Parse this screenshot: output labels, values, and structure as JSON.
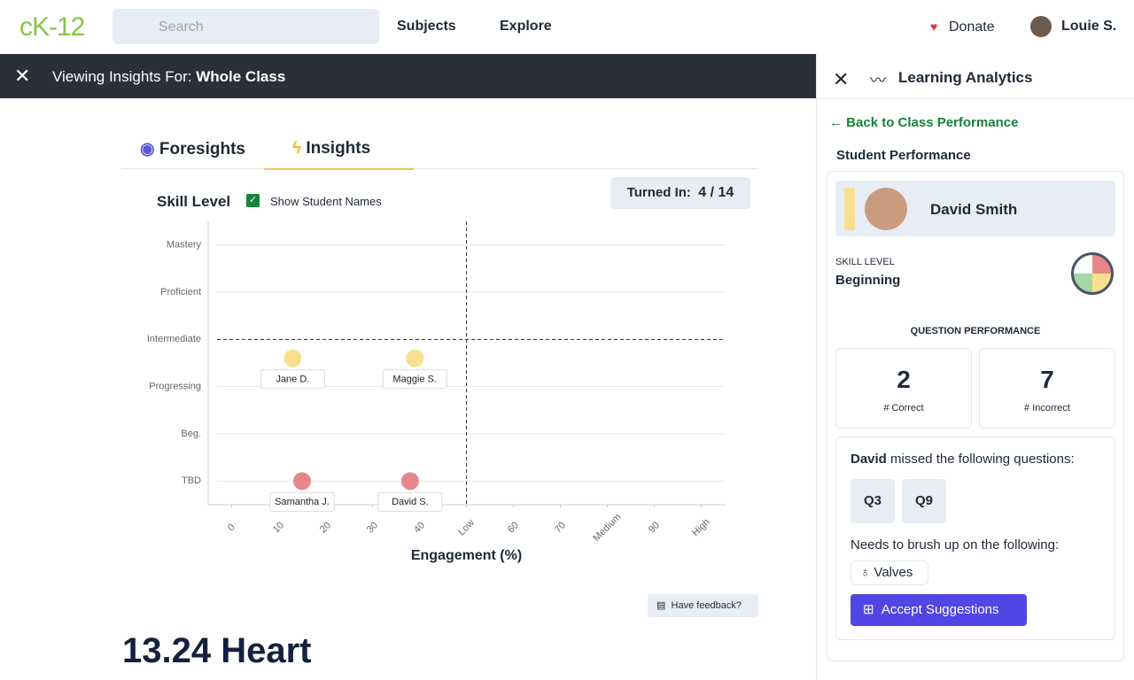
{
  "header": {
    "logo": "cK-12",
    "search": "Search",
    "nav": [
      "Subjects",
      "Explore"
    ],
    "donate": "Donate",
    "user": "Louie S."
  },
  "banner": {
    "prefix": "Viewing Insights For:",
    "target": "Whole Class"
  },
  "tabs": [
    "Foresights",
    "Insights"
  ],
  "chart_header": {
    "title": "Skill Level",
    "checkbox": "Show Student Names",
    "turned_in_label": "Turned In:",
    "turned_in_value": "4 / 14"
  },
  "chart_data": {
    "type": "scatter",
    "x_label": "Engagement (%)",
    "xlim": [
      -5,
      105
    ],
    "xticks": [
      0,
      10,
      20,
      30,
      40,
      {
        "value": 50,
        "label": "Low"
      },
      60,
      70,
      {
        "value": 80,
        "label": "Medium"
      },
      90,
      {
        "value": 100,
        "label": "High"
      }
    ],
    "ylim": [
      -0.5,
      5.5
    ],
    "yticks": [
      {
        "value": 0,
        "label": "TBD"
      },
      {
        "value": 1,
        "label": "Beg."
      },
      {
        "value": 2,
        "label": "Progressing"
      },
      {
        "value": 3,
        "label": "Intermediate"
      },
      {
        "value": 4,
        "label": "Proficient"
      },
      {
        "value": 5,
        "label": "Mastery"
      }
    ],
    "grid": true,
    "threshold": {
      "x": 50,
      "y": 3
    },
    "points": [
      {
        "label": "Jane D.",
        "x": 13,
        "y": 2.6,
        "color": "#f9e08f"
      },
      {
        "label": "Maggie S.",
        "x": 39,
        "y": 2.6,
        "color": "#f9e08f"
      },
      {
        "label": "Samantha J.",
        "x": 15,
        "y": 0,
        "color": "#e8868a"
      },
      {
        "label": "David S.",
        "x": 38,
        "y": 0,
        "color": "#e8868a"
      }
    ]
  },
  "feedback": "Have feedback?",
  "section_title": "13.24 Heart",
  "panel": {
    "title": "Learning Analytics",
    "back": "Back to Class Performance",
    "section": "Student Performance",
    "student": "David Smith",
    "skill_label": "SKILL LEVEL",
    "skill": "Beginning",
    "qp_title": "QUESTION PERFORMANCE",
    "correct": {
      "value": 2,
      "label": "# Correct"
    },
    "incorrect": {
      "value": 7,
      "label": "# Incorrect"
    },
    "missed_name": "David",
    "missed_text": "missed the following questions:",
    "questions": [
      "Q3",
      "Q9"
    ],
    "brush": "Needs to brush up on the following:",
    "topics": [
      "Valves"
    ],
    "button": "Accept Suggestions"
  }
}
